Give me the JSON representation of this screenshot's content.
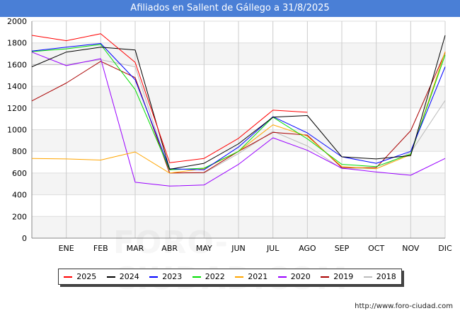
{
  "header": {
    "title": "Afiliados en Sallent de Gállego a 31/8/2025"
  },
  "footer": {
    "source": "http://www.foro-ciudad.com"
  },
  "watermark": "FORO-CIUDAD.COM",
  "chart_data": {
    "type": "line",
    "title": "Afiliados en Sallent de Gállego a 31/8/2025",
    "xlabel": "",
    "ylabel": "",
    "categories": [
      "",
      "ENE",
      "FEB",
      "MAR",
      "ABR",
      "MAY",
      "JUN",
      "JUL",
      "AGO",
      "SEP",
      "OCT",
      "NOV",
      "DIC"
    ],
    "ylim": [
      0,
      2000
    ],
    "yticks": [
      0,
      200,
      400,
      600,
      800,
      1000,
      1200,
      1400,
      1600,
      1800,
      2000
    ],
    "grid": true,
    "legend_position": "bottom",
    "series": [
      {
        "name": "2025",
        "color": "#ff0000",
        "values": [
          1870,
          1820,
          1885,
          1620,
          695,
          735,
          920,
          1180,
          1160,
          null,
          null,
          null,
          null
        ]
      },
      {
        "name": "2024",
        "color": "#000000",
        "values": [
          1580,
          1715,
          1760,
          1735,
          635,
          690,
          870,
          1115,
          1130,
          750,
          730,
          760,
          1870
        ]
      },
      {
        "name": "2023",
        "color": "#0000ff",
        "values": [
          1725,
          1760,
          1795,
          1460,
          640,
          630,
          840,
          1120,
          970,
          750,
          690,
          800,
          1580
        ]
      },
      {
        "name": "2022",
        "color": "#00dd00",
        "values": [
          1720,
          1745,
          1785,
          1370,
          630,
          645,
          800,
          1115,
          915,
          680,
          660,
          775,
          1690
        ]
      },
      {
        "name": "2021",
        "color": "#ffa500",
        "values": [
          735,
          730,
          720,
          795,
          600,
          640,
          800,
          1045,
          940,
          660,
          640,
          770,
          1720
        ]
      },
      {
        "name": "2020",
        "color": "#9900ff",
        "values": [
          1715,
          1590,
          1655,
          515,
          480,
          490,
          680,
          925,
          810,
          645,
          610,
          580,
          735
        ]
      },
      {
        "name": "2019",
        "color": "#aa0000",
        "values": [
          1265,
          1430,
          1630,
          1480,
          600,
          605,
          800,
          975,
          950,
          650,
          650,
          990,
          1710
        ]
      },
      {
        "name": "2018",
        "color": "#bbbbbb",
        "values": [
          1600,
          1600,
          1645,
          1580,
          600,
          600,
          780,
          985,
          850,
          640,
          640,
          790,
          1270
        ]
      }
    ]
  }
}
